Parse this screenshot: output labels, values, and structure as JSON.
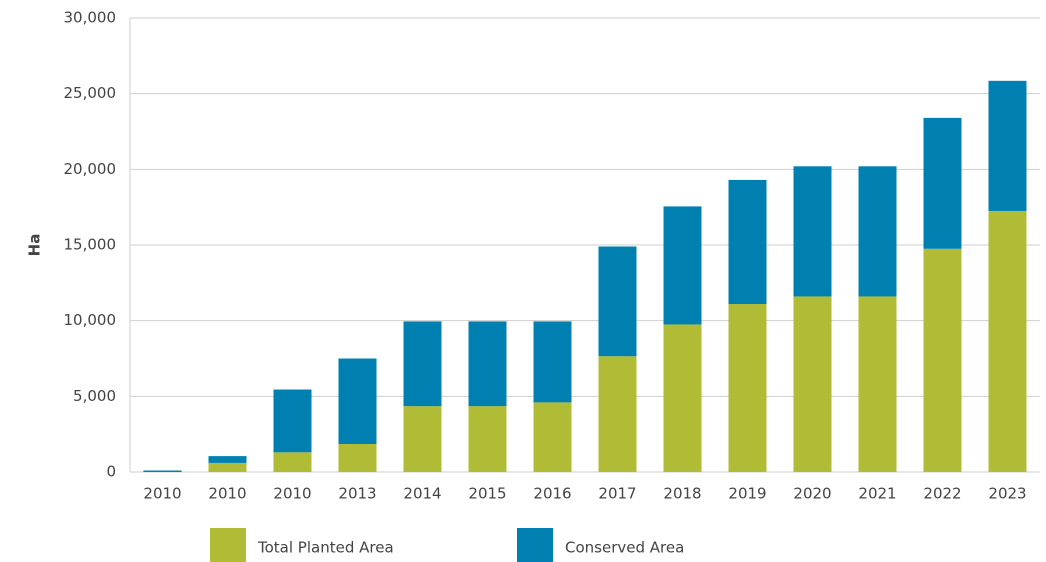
{
  "chart_data": {
    "type": "bar",
    "stacked": true,
    "y_label": "Ha",
    "categories": [
      "2010",
      "2010",
      "2010",
      "2013",
      "2014",
      "2015",
      "2016",
      "2017",
      "2018",
      "2019",
      "2020",
      "2021",
      "2022",
      "2023"
    ],
    "series": [
      {
        "name": "Total Planted Area",
        "color": "#b1bc36",
        "values": [
          0,
          600,
          1300,
          1850,
          4350,
          4350,
          4600,
          7650,
          9750,
          11100,
          11600,
          11600,
          14750,
          17250
        ]
      },
      {
        "name": "Conserved Area",
        "color": "#0080b0",
        "values": [
          100,
          450,
          4150,
          5650,
          5600,
          5600,
          5350,
          7250,
          7800,
          8200,
          8600,
          8600,
          8650,
          8600
        ]
      }
    ],
    "ylim": [
      0,
      30000
    ],
    "yticks": [
      0,
      {
        "value": 5000,
        "label": "5,000"
      },
      {
        "value": 10000,
        "label": "10,000"
      },
      {
        "value": 15000,
        "label": "15,000"
      },
      {
        "value": 20000,
        "label": "20,000"
      },
      {
        "value": 25000,
        "label": "25,000"
      },
      {
        "value": 30000,
        "label": "30,000"
      }
    ],
    "grid": true,
    "legend": "bottom"
  }
}
